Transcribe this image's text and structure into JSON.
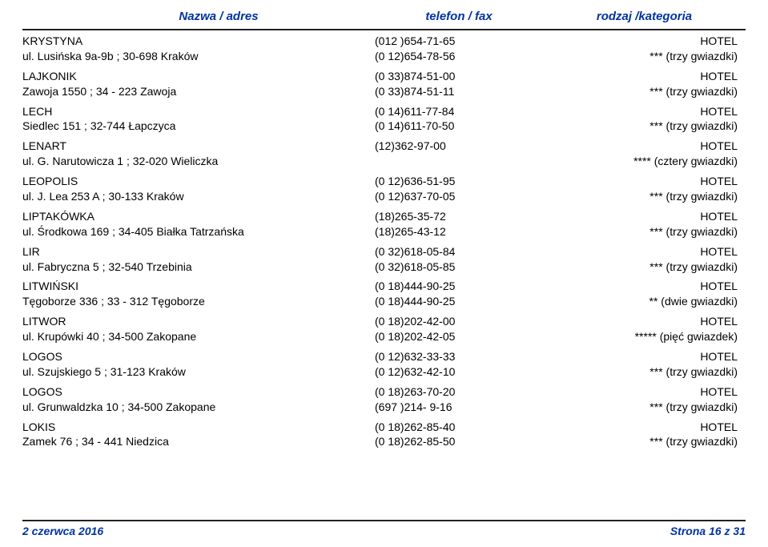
{
  "header": {
    "col1": "Nazwa / adres",
    "col2": "telefon / fax",
    "col3": "rodzaj /kategoria"
  },
  "entries": [
    {
      "name": "KRYSTYNA",
      "address": "ul. Lusińska 9a-9b ;  30-698 Kraków",
      "phone1": "(012 )654-71-65",
      "phone2": "(0 12)654-78-56",
      "type": "HOTEL",
      "stars": "*** (trzy gwiazdki)"
    },
    {
      "name": "LAJKONIK",
      "address": "Zawoja 1550 ;  34 - 223 Zawoja",
      "phone1": "(0 33)874-51-00",
      "phone2": "(0 33)874-51-11",
      "type": "HOTEL",
      "stars": "*** (trzy gwiazdki)"
    },
    {
      "name": "LECH",
      "address": "Siedlec 151 ;  32-744 Łapczyca",
      "phone1": "(0 14)611-77-84",
      "phone2": "(0 14)611-70-50",
      "type": "HOTEL",
      "stars": "*** (trzy gwiazdki)"
    },
    {
      "name": "LENART",
      "address": "ul. G. Narutowicza 1 ;  32-020 Wieliczka",
      "phone1": "(12)362-97-00",
      "phone2": "",
      "type": "HOTEL",
      "stars": "**** (cztery gwiazdki)"
    },
    {
      "name": "LEOPOLIS",
      "address": "ul. J. Lea 253 A ;  30-133 Kraków",
      "phone1": "(0 12)636-51-95",
      "phone2": "(0 12)637-70-05",
      "type": "HOTEL",
      "stars": "*** (trzy gwiazdki)"
    },
    {
      "name": "LIPTAKÓWKA",
      "address": "ul. Środkowa 169 ;  34-405 Białka Tatrzańska",
      "phone1": "(18)265-35-72",
      "phone2": "(18)265-43-12",
      "type": "HOTEL",
      "stars": "*** (trzy gwiazdki)"
    },
    {
      "name": "LIR",
      "address": "ul. Fabryczna 5 ;  32-540 Trzebinia",
      "phone1": "(0 32)618-05-84",
      "phone2": "(0 32)618-05-85",
      "type": "HOTEL",
      "stars": "*** (trzy gwiazdki)"
    },
    {
      "name": "LITWIŃSKI",
      "address": "Tęgoborze 336 ;  33 - 312 Tęgoborze",
      "phone1": "(0 18)444-90-25",
      "phone2": "(0 18)444-90-25",
      "type": "HOTEL",
      "stars": "** (dwie gwiazdki)"
    },
    {
      "name": "LITWOR",
      "address": "ul. Krupówki 40 ;  34-500 Zakopane",
      "phone1": "(0 18)202-42-00",
      "phone2": "(0 18)202-42-05",
      "type": "HOTEL",
      "stars": "***** (pięć gwiazdek)"
    },
    {
      "name": "LOGOS",
      "address": "ul. Szujskiego 5 ;  31-123 Kraków",
      "phone1": "(0 12)632-33-33",
      "phone2": "(0 12)632-42-10",
      "type": "HOTEL",
      "stars": "*** (trzy gwiazdki)"
    },
    {
      "name": "LOGOS",
      "address": "ul. Grunwaldzka 10 ;  34-500 Zakopane",
      "phone1": "(0 18)263-70-20",
      "phone2": "(697 )214- 9-16",
      "type": "HOTEL",
      "stars": "*** (trzy gwiazdki)"
    },
    {
      "name": "LOKIS",
      "address": "Zamek 76 ;  34 - 441 Niedzica",
      "phone1": "(0 18)262-85-40",
      "phone2": "(0 18)262-85-50",
      "type": "HOTEL",
      "stars": "*** (trzy gwiazdki)"
    }
  ],
  "footer": {
    "date": "2 czerwca 2016",
    "page": "Strona 16 z 31"
  }
}
